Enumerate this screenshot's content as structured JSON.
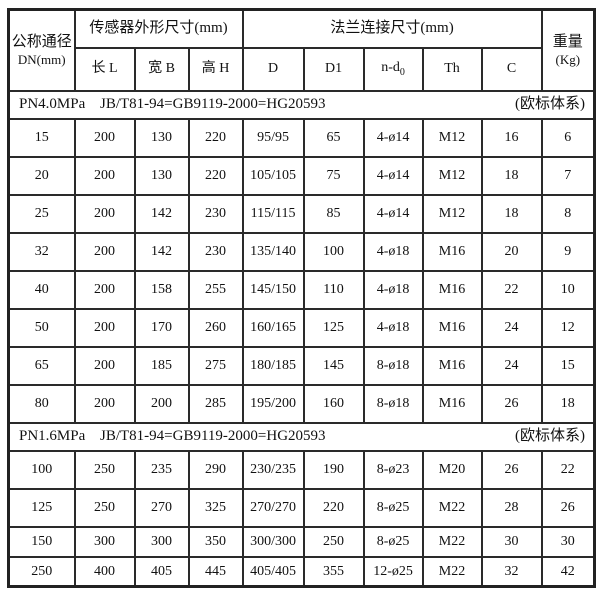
{
  "table": {
    "header": {
      "dn_line1": "公称通径",
      "dn_line2": "DN(mm)",
      "sensor_group_label": "传感器外形尺寸(mm)",
      "flange_group_label": "法兰连接尺寸(mm)",
      "weight_line1": "重量",
      "weight_line2": "(Kg)",
      "col_length": "长 L",
      "col_width": "宽 B",
      "col_height": "高 H",
      "col_d": "D",
      "col_d1": "D1",
      "col_nd_base": "n-d",
      "col_nd_sub": "0",
      "col_th": "Th",
      "col_c": "C"
    },
    "sections": [
      {
        "pressure": "PN4.0MPa",
        "standard": "JB/T81-94=GB9119-2000=HG20593",
        "note": "(欧标体系)",
        "rows": [
          [
            "15",
            "200",
            "130",
            "220",
            "95/95",
            "65",
            "4-ø14",
            "M12",
            "16",
            "6"
          ],
          [
            "20",
            "200",
            "130",
            "220",
            "105/105",
            "75",
            "4-ø14",
            "M12",
            "18",
            "7"
          ],
          [
            "25",
            "200",
            "142",
            "230",
            "115/115",
            "85",
            "4-ø14",
            "M12",
            "18",
            "8"
          ],
          [
            "32",
            "200",
            "142",
            "230",
            "135/140",
            "100",
            "4-ø18",
            "M16",
            "20",
            "9"
          ],
          [
            "40",
            "200",
            "158",
            "255",
            "145/150",
            "110",
            "4-ø18",
            "M16",
            "22",
            "10"
          ],
          [
            "50",
            "200",
            "170",
            "260",
            "160/165",
            "125",
            "4-ø18",
            "M16",
            "24",
            "12"
          ],
          [
            "65",
            "200",
            "185",
            "275",
            "180/185",
            "145",
            "8-ø18",
            "M16",
            "24",
            "15"
          ],
          [
            "80",
            "200",
            "200",
            "285",
            "195/200",
            "160",
            "8-ø18",
            "M16",
            "26",
            "18"
          ]
        ]
      },
      {
        "pressure": "PN1.6MPa",
        "standard": "JB/T81-94=GB9119-2000=HG20593",
        "note": "(欧标体系)",
        "rows": [
          [
            "100",
            "250",
            "235",
            "290",
            "230/235",
            "190",
            "8-ø23",
            "M20",
            "26",
            "22"
          ],
          [
            "125",
            "250",
            "270",
            "325",
            "270/270",
            "220",
            "8-ø25",
            "M22",
            "28",
            "26"
          ],
          [
            "150",
            "300",
            "300",
            "350",
            "300/300",
            "250",
            "8-ø25",
            "M22",
            "30",
            "30"
          ],
          [
            "250",
            "400",
            "405",
            "445",
            "405/405",
            "355",
            "12-ø25",
            "M22",
            "32",
            "42"
          ]
        ]
      }
    ]
  }
}
